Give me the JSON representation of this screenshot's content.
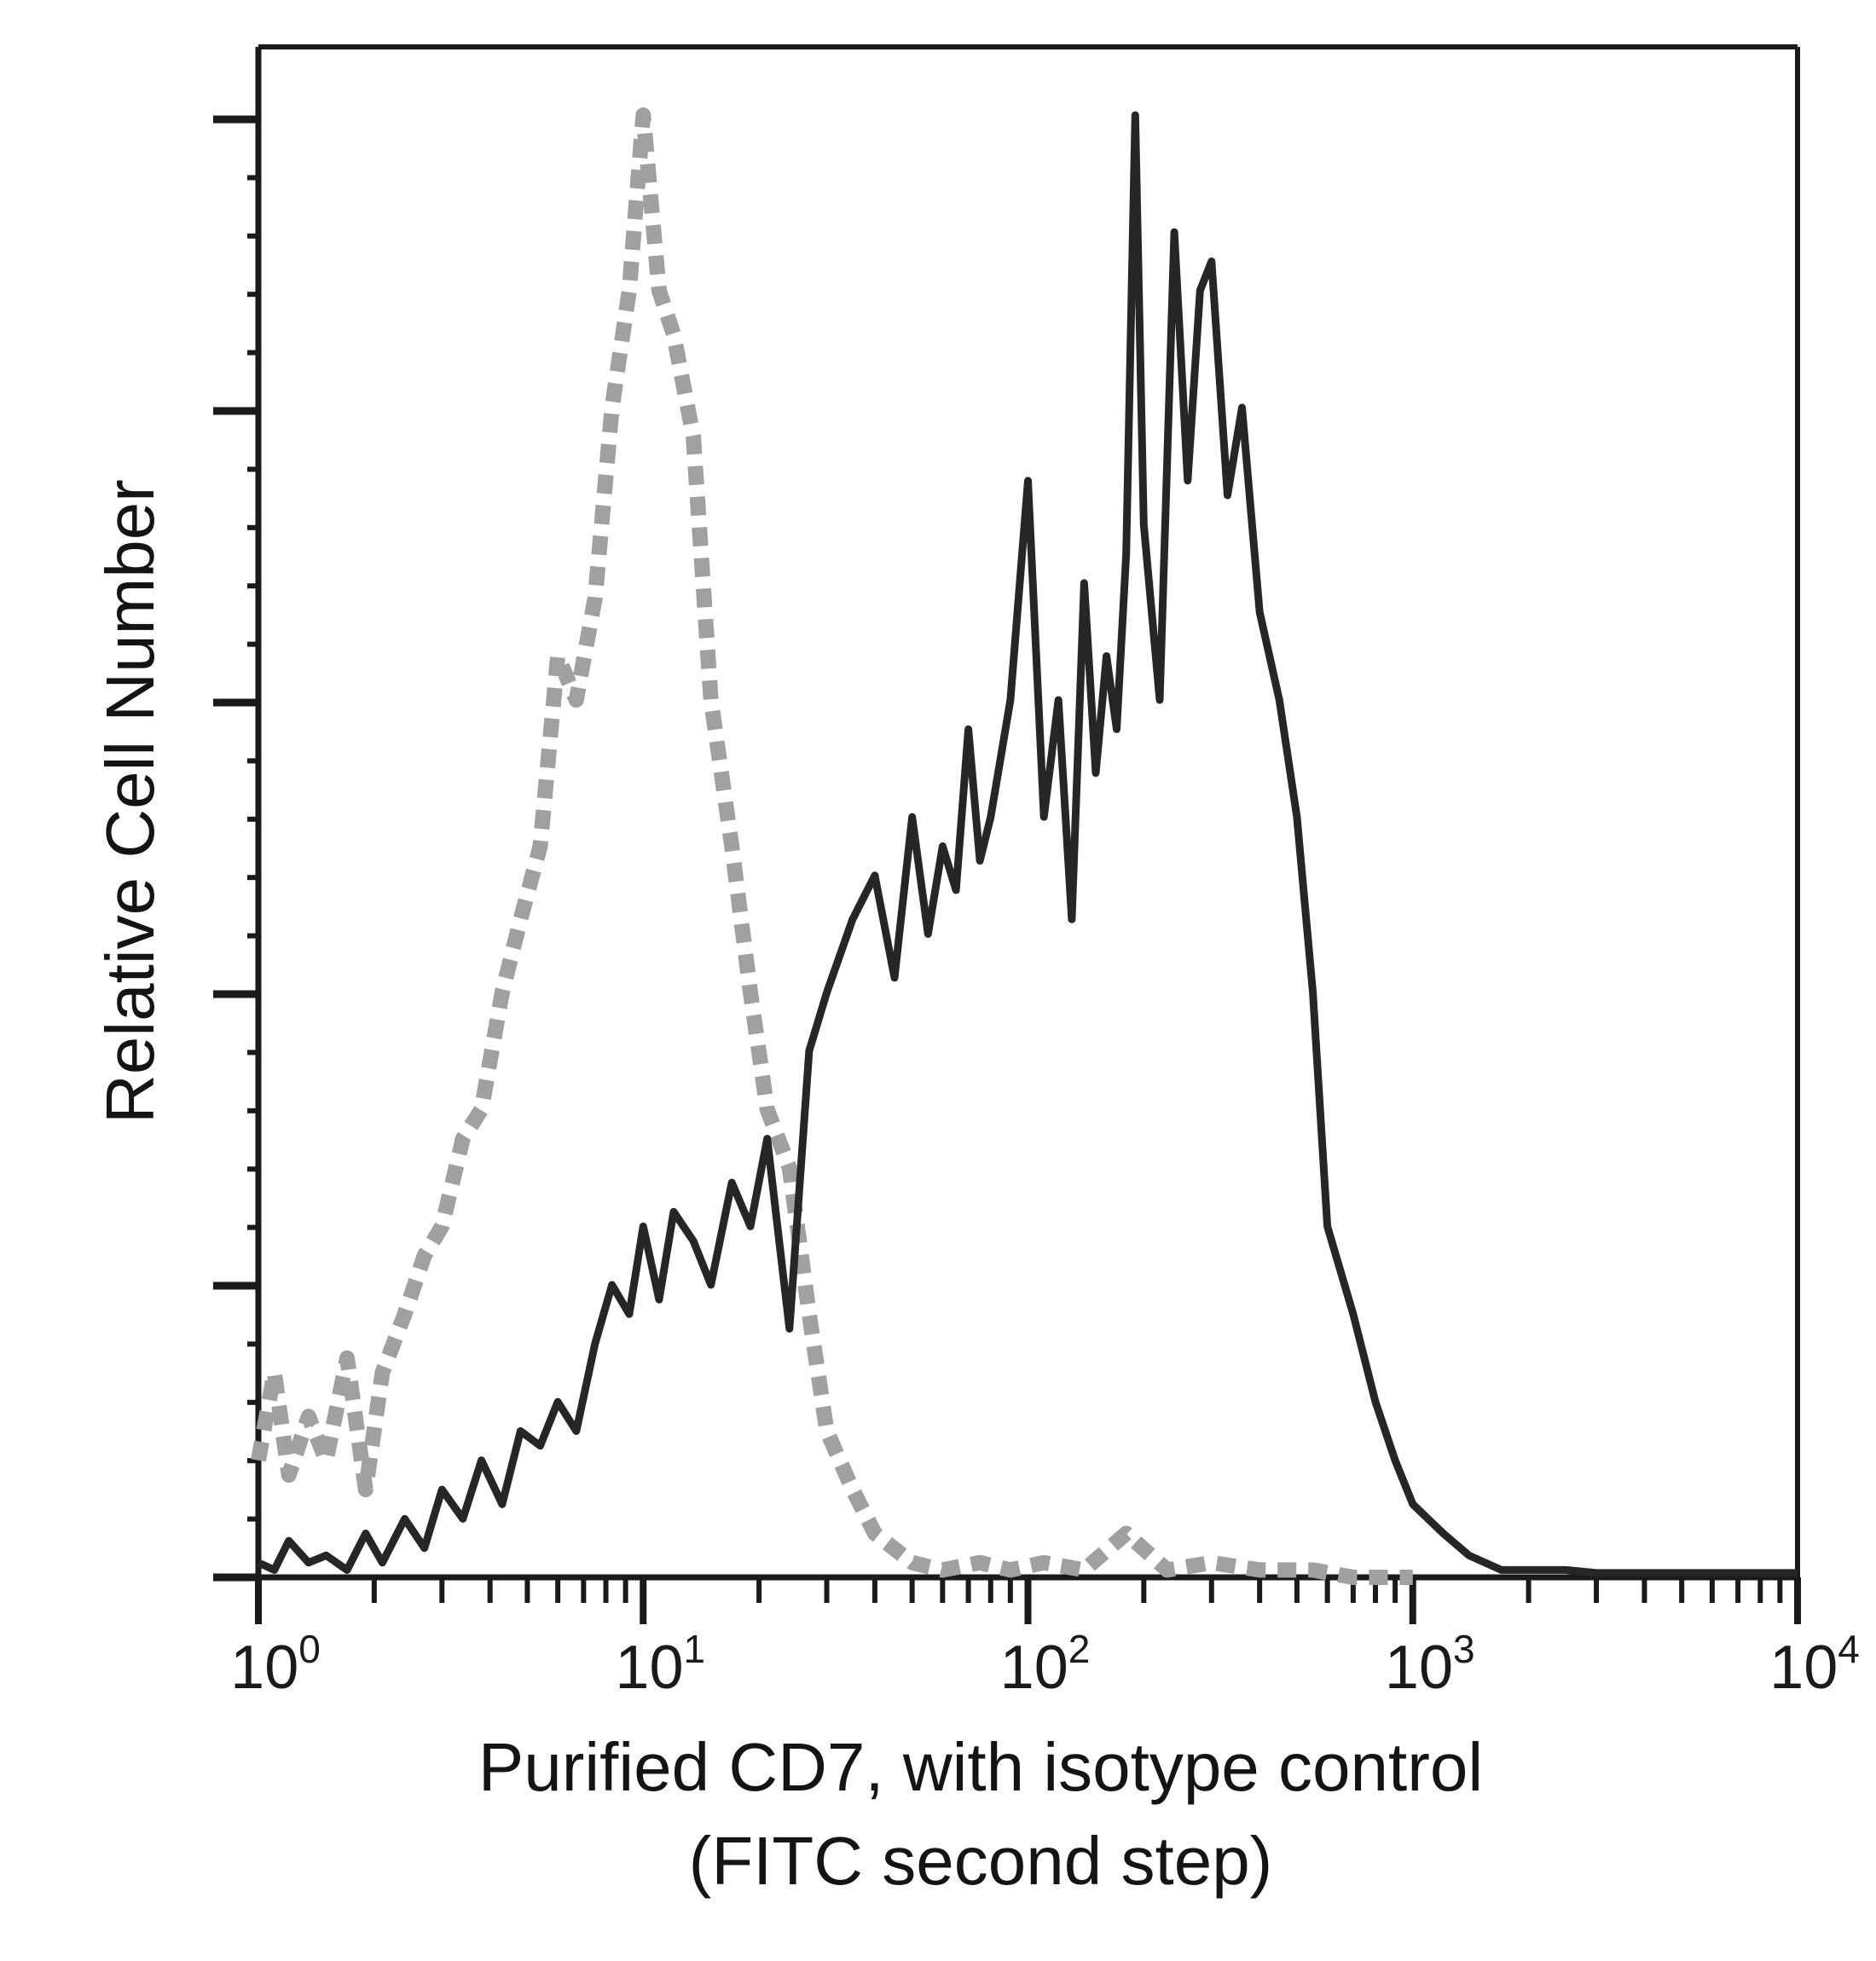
{
  "chart_data": {
    "type": "line",
    "subtype": "flow-cytometry-histogram",
    "title": "",
    "xlabel_lines": [
      "Purified CD7, with isotype control",
      "(FITC second step)"
    ],
    "ylabel": "Relative Cell Number",
    "x_scale": "log10",
    "xlim": [
      1,
      10000
    ],
    "ylim": [
      0,
      100
    ],
    "x_ticks": [
      {
        "base": "10",
        "exp": "0"
      },
      {
        "base": "10",
        "exp": "1"
      },
      {
        "base": "10",
        "exp": "2"
      },
      {
        "base": "10",
        "exp": "3"
      },
      {
        "base": "10",
        "exp": "4"
      }
    ],
    "y_tick_labels_shown": false,
    "grid": false,
    "legend": "none",
    "series": [
      {
        "role": "isotype-control",
        "style": "dashed",
        "color": "#a0a0a0",
        "x": [
          1.0,
          1.1,
          1.2,
          1.35,
          1.5,
          1.7,
          1.9,
          2.1,
          2.4,
          2.7,
          3.0,
          3.4,
          3.8,
          4.3,
          4.8,
          5.4,
          6.0,
          6.7,
          7.5,
          8.3,
          9.2,
          10.0,
          11.0,
          12.0,
          13.5,
          15.0,
          17.0,
          19.0,
          21.0,
          24.0,
          27.0,
          30.0,
          35.0,
          40.0,
          50.0,
          60.0,
          75.0,
          90.0,
          110.0,
          140.0,
          180.0,
          230.0,
          300.0,
          400.0,
          550.0,
          700.0,
          1000.0
        ],
        "y": [
          8,
          14,
          7,
          11,
          8,
          15,
          6,
          14,
          18,
          22,
          24,
          30,
          32,
          40,
          45,
          50,
          63,
          60,
          67,
          80,
          88,
          100,
          88,
          85,
          78,
          60,
          50,
          40,
          32,
          28,
          18,
          10,
          6,
          3,
          1,
          0.5,
          1,
          0.5,
          1,
          0.5,
          3,
          0.5,
          1,
          0.5,
          0.5,
          0,
          0
        ]
      },
      {
        "role": "purified-CD7",
        "style": "solid",
        "color": "#262626",
        "x": [
          1.0,
          1.1,
          1.2,
          1.35,
          1.5,
          1.7,
          1.9,
          2.1,
          2.4,
          2.7,
          3.0,
          3.4,
          3.8,
          4.3,
          4.8,
          5.4,
          6.0,
          6.7,
          7.5,
          8.3,
          9.2,
          10.0,
          11.0,
          12.0,
          13.5,
          15.0,
          17.0,
          19.0,
          21.0,
          24.0,
          27.0,
          30.0,
          35.0,
          40.0,
          45.0,
          50.0,
          55.0,
          60.0,
          65.0,
          70.0,
          75.0,
          80.0,
          90.0,
          100.0,
          110.0,
          120.0,
          130.0,
          140.0,
          150.0,
          160.0,
          170.0,
          180.0,
          190.0,
          200.0,
          220.0,
          240.0,
          260.0,
          280.0,
          300.0,
          330.0,
          360.0,
          400.0,
          450.0,
          500.0,
          550.0,
          600.0,
          700.0,
          800.0,
          900.0,
          1000.0,
          1200.0,
          1400.0,
          1700.0,
          2000.0,
          2500.0,
          3000.0,
          4000.0,
          5000.0,
          6000.0,
          7000.0,
          8000.0,
          10000.0
        ],
        "y": [
          1,
          0.5,
          2.5,
          1,
          1.5,
          0.5,
          3,
          1,
          4,
          2,
          6,
          4,
          8,
          5,
          10,
          9,
          12,
          10,
          16,
          20,
          18,
          24,
          19,
          25,
          23,
          20,
          27,
          24,
          30,
          17,
          36,
          40,
          45,
          48,
          41,
          52,
          44,
          50,
          47,
          58,
          49,
          52,
          60,
          75,
          52,
          60,
          45,
          68,
          55,
          63,
          58,
          70,
          100,
          72,
          60,
          92,
          75,
          88,
          90,
          74,
          80,
          66,
          60,
          52,
          40,
          24,
          18,
          12,
          8,
          5,
          3,
          1.5,
          0.5,
          0.5,
          0.5,
          0.3,
          0.3,
          0.3,
          0.3,
          0.3,
          0.3,
          0.3
        ]
      }
    ]
  }
}
